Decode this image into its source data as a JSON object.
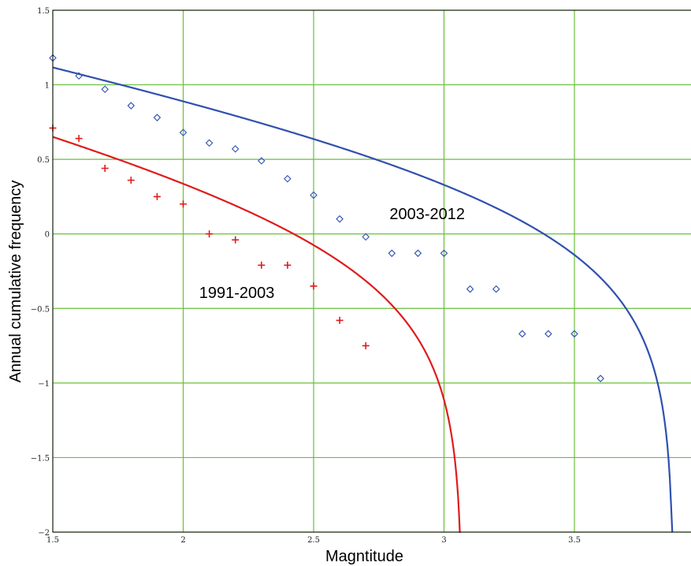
{
  "chart_data": {
    "type": "scatter",
    "title": "",
    "xlabel": "Magntitude",
    "ylabel": "Annual cumulative frequency",
    "xlim": [
      1.5,
      3.95
    ],
    "ylim": [
      -2,
      1.5
    ],
    "grid": true,
    "xticks": [
      1.5,
      2,
      2.5,
      3,
      3.5
    ],
    "xtick_labels": [
      "1.5",
      "2",
      "2.5",
      "3",
      "3.5"
    ],
    "yticks": [
      -2,
      -1.5,
      -1,
      -0.5,
      0,
      0.5,
      1,
      1.5
    ],
    "ytick_labels": [
      "−2",
      "−1.5",
      "−1",
      "−0.5",
      "0",
      "0.5",
      "1",
      "1.5"
    ],
    "series": [
      {
        "name": "1991-2003",
        "color": "#e01b1b",
        "marker": "plus",
        "label_at": [
          2.35,
          -0.43
        ],
        "fit": {
          "a": 1.455,
          "b": 0.48,
          "mmax": 3.07
        },
        "points": [
          [
            1.5,
            0.71
          ],
          [
            1.6,
            0.64
          ],
          [
            1.7,
            0.44
          ],
          [
            1.8,
            0.36
          ],
          [
            1.9,
            0.25
          ],
          [
            2.0,
            0.2
          ],
          [
            2.1,
            0.0
          ],
          [
            2.2,
            -0.04
          ],
          [
            2.3,
            -0.21
          ],
          [
            2.4,
            -0.21
          ],
          [
            2.5,
            -0.35
          ],
          [
            2.6,
            -0.58
          ],
          [
            2.7,
            -0.75
          ]
        ]
      },
      {
        "name": "2003-2012",
        "color": "#3050b0",
        "marker": "diamond",
        "label_at": [
          3.08,
          0.1
        ],
        "fit": {
          "a": 1.75,
          "b": 0.385,
          "mmax": 3.88
        },
        "points": [
          [
            1.5,
            1.18
          ],
          [
            1.6,
            1.06
          ],
          [
            1.7,
            0.97
          ],
          [
            1.8,
            0.86
          ],
          [
            1.9,
            0.78
          ],
          [
            2.0,
            0.68
          ],
          [
            2.1,
            0.61
          ],
          [
            2.2,
            0.57
          ],
          [
            2.3,
            0.49
          ],
          [
            2.4,
            0.37
          ],
          [
            2.5,
            0.26
          ],
          [
            2.6,
            0.1
          ],
          [
            2.7,
            -0.02
          ],
          [
            2.8,
            -0.13
          ],
          [
            2.9,
            -0.13
          ],
          [
            3.0,
            -0.13
          ],
          [
            3.1,
            -0.37
          ],
          [
            3.2,
            -0.37
          ],
          [
            3.3,
            -0.67
          ],
          [
            3.4,
            -0.67
          ],
          [
            3.5,
            -0.67
          ],
          [
            3.6,
            -0.97
          ]
        ]
      }
    ]
  }
}
